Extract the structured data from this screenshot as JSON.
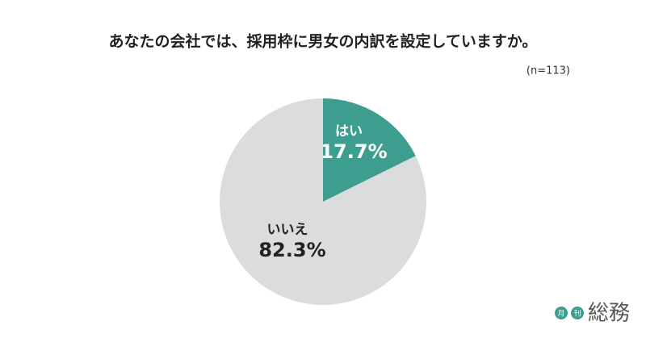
{
  "chart_data": {
    "type": "pie",
    "title": "あなたの会社では、採用枠に男女の内訳を設定していますか。",
    "subtitle": "(n=113)",
    "categories": [
      "はい",
      "いいえ"
    ],
    "values": [
      17.7,
      82.3
    ],
    "value_labels": [
      "17.7%",
      "82.3%"
    ],
    "colors": [
      "#3d9e8f",
      "#dcdcdc"
    ],
    "label_colors": [
      "#ffffff",
      "#222222"
    ]
  },
  "logo": {
    "small": [
      "月",
      "刊"
    ],
    "main": "総務"
  }
}
